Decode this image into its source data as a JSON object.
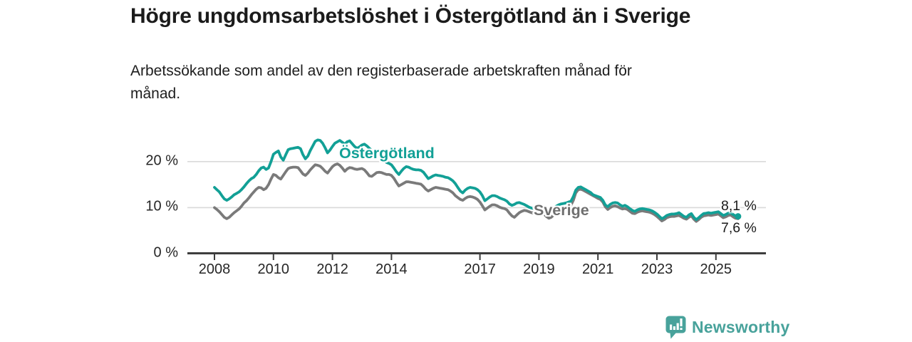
{
  "colors": {
    "ostergotland": "#12a096",
    "sverige": "#7a7a7a",
    "grid": "#d9d9d9",
    "axis": "#3d3d3d",
    "text": "#1b1b1b",
    "brand": "#48a29b"
  },
  "footer": {
    "brand": "Newsworthy",
    "icon": "bar-chart-exclamation-icon"
  },
  "chart_data": {
    "type": "line",
    "title": "Högre ungdomsarbetslöshet i Östergötland än i Sverige",
    "subtitle": "Arbetssökande som andel av den registerbaserade arbetskraften månad för månad.",
    "x_unit": "month",
    "x_start": "2008-01",
    "x_end": "2025-10",
    "x_ticks": [
      2008,
      2010,
      2012,
      2014,
      2017,
      2019,
      2021,
      2023,
      2025
    ],
    "y_ticks": [
      {
        "value": 0,
        "label": "0 %"
      },
      {
        "value": 10,
        "label": "10 %"
      },
      {
        "value": 20,
        "label": "20 %"
      }
    ],
    "ylim": [
      0,
      26
    ],
    "grid": "horizontal",
    "legend": "inline-labels",
    "series": [
      {
        "name": "Östergötland",
        "color": "#12a096",
        "end_label": "8,1 %",
        "latest_value": 8.1,
        "values": [
          14.4,
          13.9,
          13.4,
          12.6,
          11.9,
          11.6,
          11.9,
          12.3,
          12.8,
          13.1,
          13.4,
          13.9,
          14.5,
          15.2,
          15.8,
          16.3,
          16.6,
          17.2,
          18.0,
          18.6,
          18.8,
          18.3,
          18.6,
          20.0,
          21.6,
          22.0,
          22.3,
          21.0,
          20.3,
          21.5,
          22.6,
          22.8,
          22.9,
          23.0,
          23.1,
          22.8,
          21.5,
          20.6,
          21.2,
          22.4,
          23.4,
          24.4,
          24.7,
          24.6,
          24.0,
          23.0,
          21.9,
          22.5,
          23.3,
          24.0,
          24.3,
          24.6,
          24.2,
          23.8,
          24.3,
          24.5,
          23.9,
          23.3,
          22.9,
          23.2,
          23.6,
          23.8,
          23.4,
          22.9,
          22.4,
          22.0,
          22.4,
          22.0,
          21.3,
          20.4,
          19.8,
          19.6,
          19.3,
          18.6,
          17.8,
          17.2,
          17.9,
          18.5,
          18.9,
          18.8,
          18.5,
          18.3,
          18.2,
          18.2,
          18.1,
          17.7,
          17.0,
          16.3,
          16.6,
          16.9,
          17.1,
          17.0,
          16.9,
          16.8,
          16.6,
          16.5,
          16.2,
          15.8,
          15.2,
          14.4,
          13.6,
          13.2,
          13.8,
          14.2,
          14.4,
          14.3,
          14.2,
          13.9,
          13.4,
          12.6,
          11.5,
          11.9,
          12.3,
          12.6,
          12.6,
          12.4,
          12.1,
          11.9,
          11.7,
          11.4,
          10.8,
          10.5,
          10.7,
          11.0,
          11.1,
          10.9,
          10.7,
          10.4,
          10.1,
          9.9,
          9.8,
          9.9,
          10.1,
          10.0,
          9.8,
          9.5,
          9.3,
          9.5,
          9.9,
          10.3,
          10.6,
          10.8,
          10.9,
          11.0,
          11.2,
          11.4,
          12.4,
          13.8,
          14.4,
          14.5,
          14.2,
          13.9,
          13.6,
          13.3,
          12.8,
          12.6,
          12.4,
          12.2,
          11.6,
          10.6,
          10.2,
          10.7,
          11.0,
          11.1,
          11.0,
          10.6,
          10.3,
          10.5,
          10.2,
          9.8,
          9.4,
          9.2,
          9.5,
          9.7,
          9.8,
          9.7,
          9.6,
          9.5,
          9.3,
          9.0,
          8.6,
          8.1,
          7.6,
          7.9,
          8.3,
          8.5,
          8.6,
          8.6,
          8.7,
          8.9,
          8.5,
          8.1,
          7.9,
          8.4,
          8.7,
          7.9,
          7.4,
          7.8,
          8.3,
          8.7,
          8.8,
          8.9,
          8.8,
          8.9,
          9.0,
          9.1,
          8.7,
          8.3,
          8.5,
          8.8,
          8.9,
          8.5,
          8.2,
          8.1
        ]
      },
      {
        "name": "Sverige",
        "color": "#7a7a7a",
        "end_label": "7,6 %",
        "latest_value": 7.6,
        "values": [
          10.0,
          9.6,
          9.1,
          8.5,
          7.9,
          7.6,
          7.9,
          8.4,
          8.9,
          9.3,
          9.7,
          10.3,
          11.0,
          11.5,
          12.1,
          12.8,
          13.4,
          14.0,
          14.4,
          14.3,
          13.9,
          14.2,
          15.0,
          16.2,
          17.2,
          17.0,
          16.5,
          16.2,
          17.0,
          17.8,
          18.5,
          18.7,
          18.8,
          18.8,
          18.7,
          18.0,
          17.3,
          17.0,
          17.5,
          18.2,
          18.8,
          19.3,
          19.2,
          19.0,
          18.5,
          17.9,
          17.5,
          18.2,
          18.9,
          19.3,
          19.5,
          19.2,
          18.6,
          17.9,
          18.4,
          18.7,
          18.6,
          18.4,
          18.3,
          18.4,
          18.5,
          18.2,
          17.6,
          16.9,
          16.8,
          17.2,
          17.6,
          17.7,
          17.6,
          17.4,
          17.2,
          17.2,
          17.0,
          16.4,
          15.5,
          14.7,
          15.0,
          15.3,
          15.6,
          15.6,
          15.5,
          15.4,
          15.3,
          15.2,
          15.1,
          14.6,
          14.0,
          13.6,
          13.9,
          14.2,
          14.4,
          14.3,
          14.2,
          14.1,
          14.0,
          13.9,
          13.6,
          13.2,
          12.6,
          12.2,
          11.8,
          11.6,
          12.0,
          12.3,
          12.4,
          12.3,
          12.1,
          11.8,
          11.2,
          10.4,
          9.5,
          9.9,
          10.3,
          10.6,
          10.6,
          10.4,
          10.1,
          9.9,
          9.8,
          9.5,
          8.8,
          8.2,
          7.9,
          8.4,
          8.9,
          9.2,
          9.4,
          9.3,
          9.1,
          8.9,
          8.8,
          8.9,
          9.0,
          8.9,
          8.6,
          8.1,
          7.7,
          7.9,
          8.4,
          8.8,
          9.2,
          9.5,
          9.7,
          9.9,
          10.2,
          10.5,
          11.6,
          13.2,
          13.9,
          14.0,
          13.8,
          13.5,
          13.2,
          12.9,
          12.6,
          12.3,
          12.0,
          11.8,
          11.2,
          10.2,
          9.6,
          10.0,
          10.3,
          10.4,
          10.2,
          9.9,
          9.7,
          9.8,
          9.6,
          9.2,
          8.8,
          8.7,
          9.0,
          9.2,
          9.3,
          9.2,
          9.1,
          9.0,
          8.8,
          8.5,
          8.1,
          7.6,
          7.1,
          7.4,
          7.8,
          8.0,
          8.1,
          8.1,
          8.2,
          8.3,
          8.0,
          7.7,
          7.5,
          7.9,
          8.2,
          7.5,
          7.0,
          7.4,
          7.9,
          8.2,
          8.3,
          8.4,
          8.3,
          8.4,
          8.5,
          8.6,
          8.2,
          7.8,
          8.0,
          8.3,
          8.4,
          8.0,
          7.7,
          7.6
        ]
      }
    ]
  }
}
